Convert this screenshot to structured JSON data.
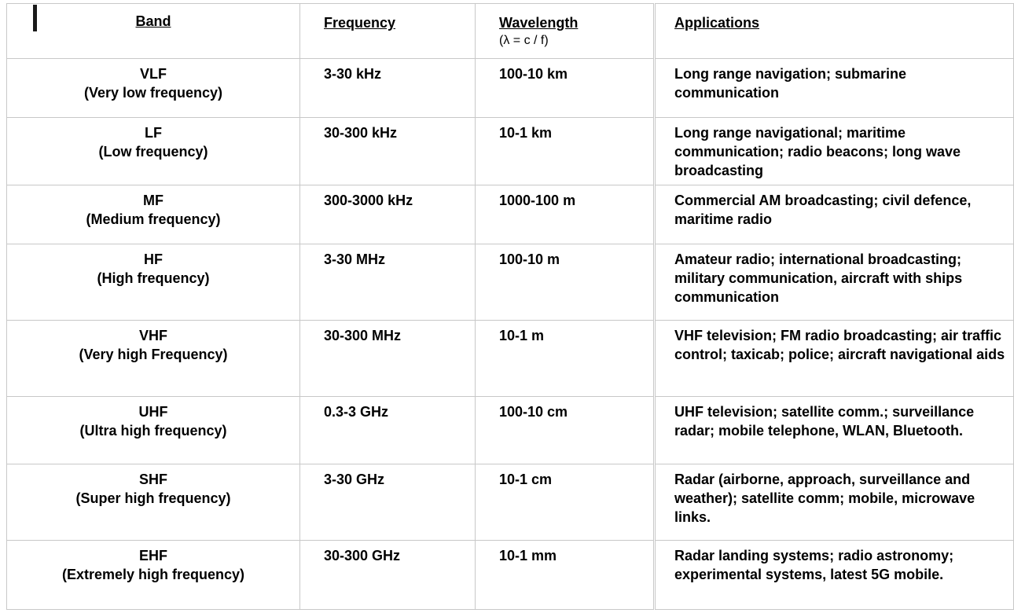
{
  "headers": {
    "band": "Band",
    "frequency": "Frequency",
    "wavelength": "Wavelength",
    "wavelength_formula": "(λ = c / f)",
    "applications": "Applications"
  },
  "rows": [
    {
      "band": "VLF",
      "band_full": "(Very low frequency)",
      "frequency": "3-30 kHz",
      "wavelength": "100-10 km",
      "applications": "Long range navigation; submarine communication"
    },
    {
      "band": "LF",
      "band_full": "(Low frequency)",
      "frequency": "30-300 kHz",
      "wavelength": "10-1 km",
      "applications": "Long range navigational; maritime communication; radio beacons; long wave broadcasting"
    },
    {
      "band": "MF",
      "band_full": "(Medium frequency)",
      "frequency": "300-3000 kHz",
      "wavelength": "1000-100 m",
      "applications": "Commercial AM broadcasting; civil defence, maritime radio"
    },
    {
      "band": "HF",
      "band_full": "(High frequency)",
      "frequency": "3-30 MHz",
      "wavelength": "100-10 m",
      "applications": "Amateur radio;  international broadcasting; military communication, aircraft with ships communication"
    },
    {
      "band": "VHF",
      "band_full": "(Very high Frequency)",
      "frequency": "30-300 MHz",
      "wavelength": "10-1 m",
      "applications": "VHF television; FM radio broadcasting; air traffic control; taxicab; police; aircraft navigational aids"
    },
    {
      "band": "UHF",
      "band_full": "(Ultra high frequency)",
      "frequency": "0.3-3 GHz",
      "wavelength": "100-10 cm",
      "applications": "UHF television;  satellite comm.; surveillance radar;  mobile telephone, WLAN, Bluetooth."
    },
    {
      "band": "SHF",
      "band_full": "(Super high frequency)",
      "frequency": "3-30 GHz",
      "wavelength": "10-1 cm",
      "applications": "Radar (airborne, approach, surveillance and weather); satellite comm; mobile, microwave links."
    },
    {
      "band": "EHF",
      "band_full": "(Extremely high frequency)",
      "frequency": "30-300 GHz",
      "wavelength": "10-1 mm",
      "applications": "Radar landing systems; radio astronomy; experimental systems, latest 5G mobile."
    }
  ]
}
